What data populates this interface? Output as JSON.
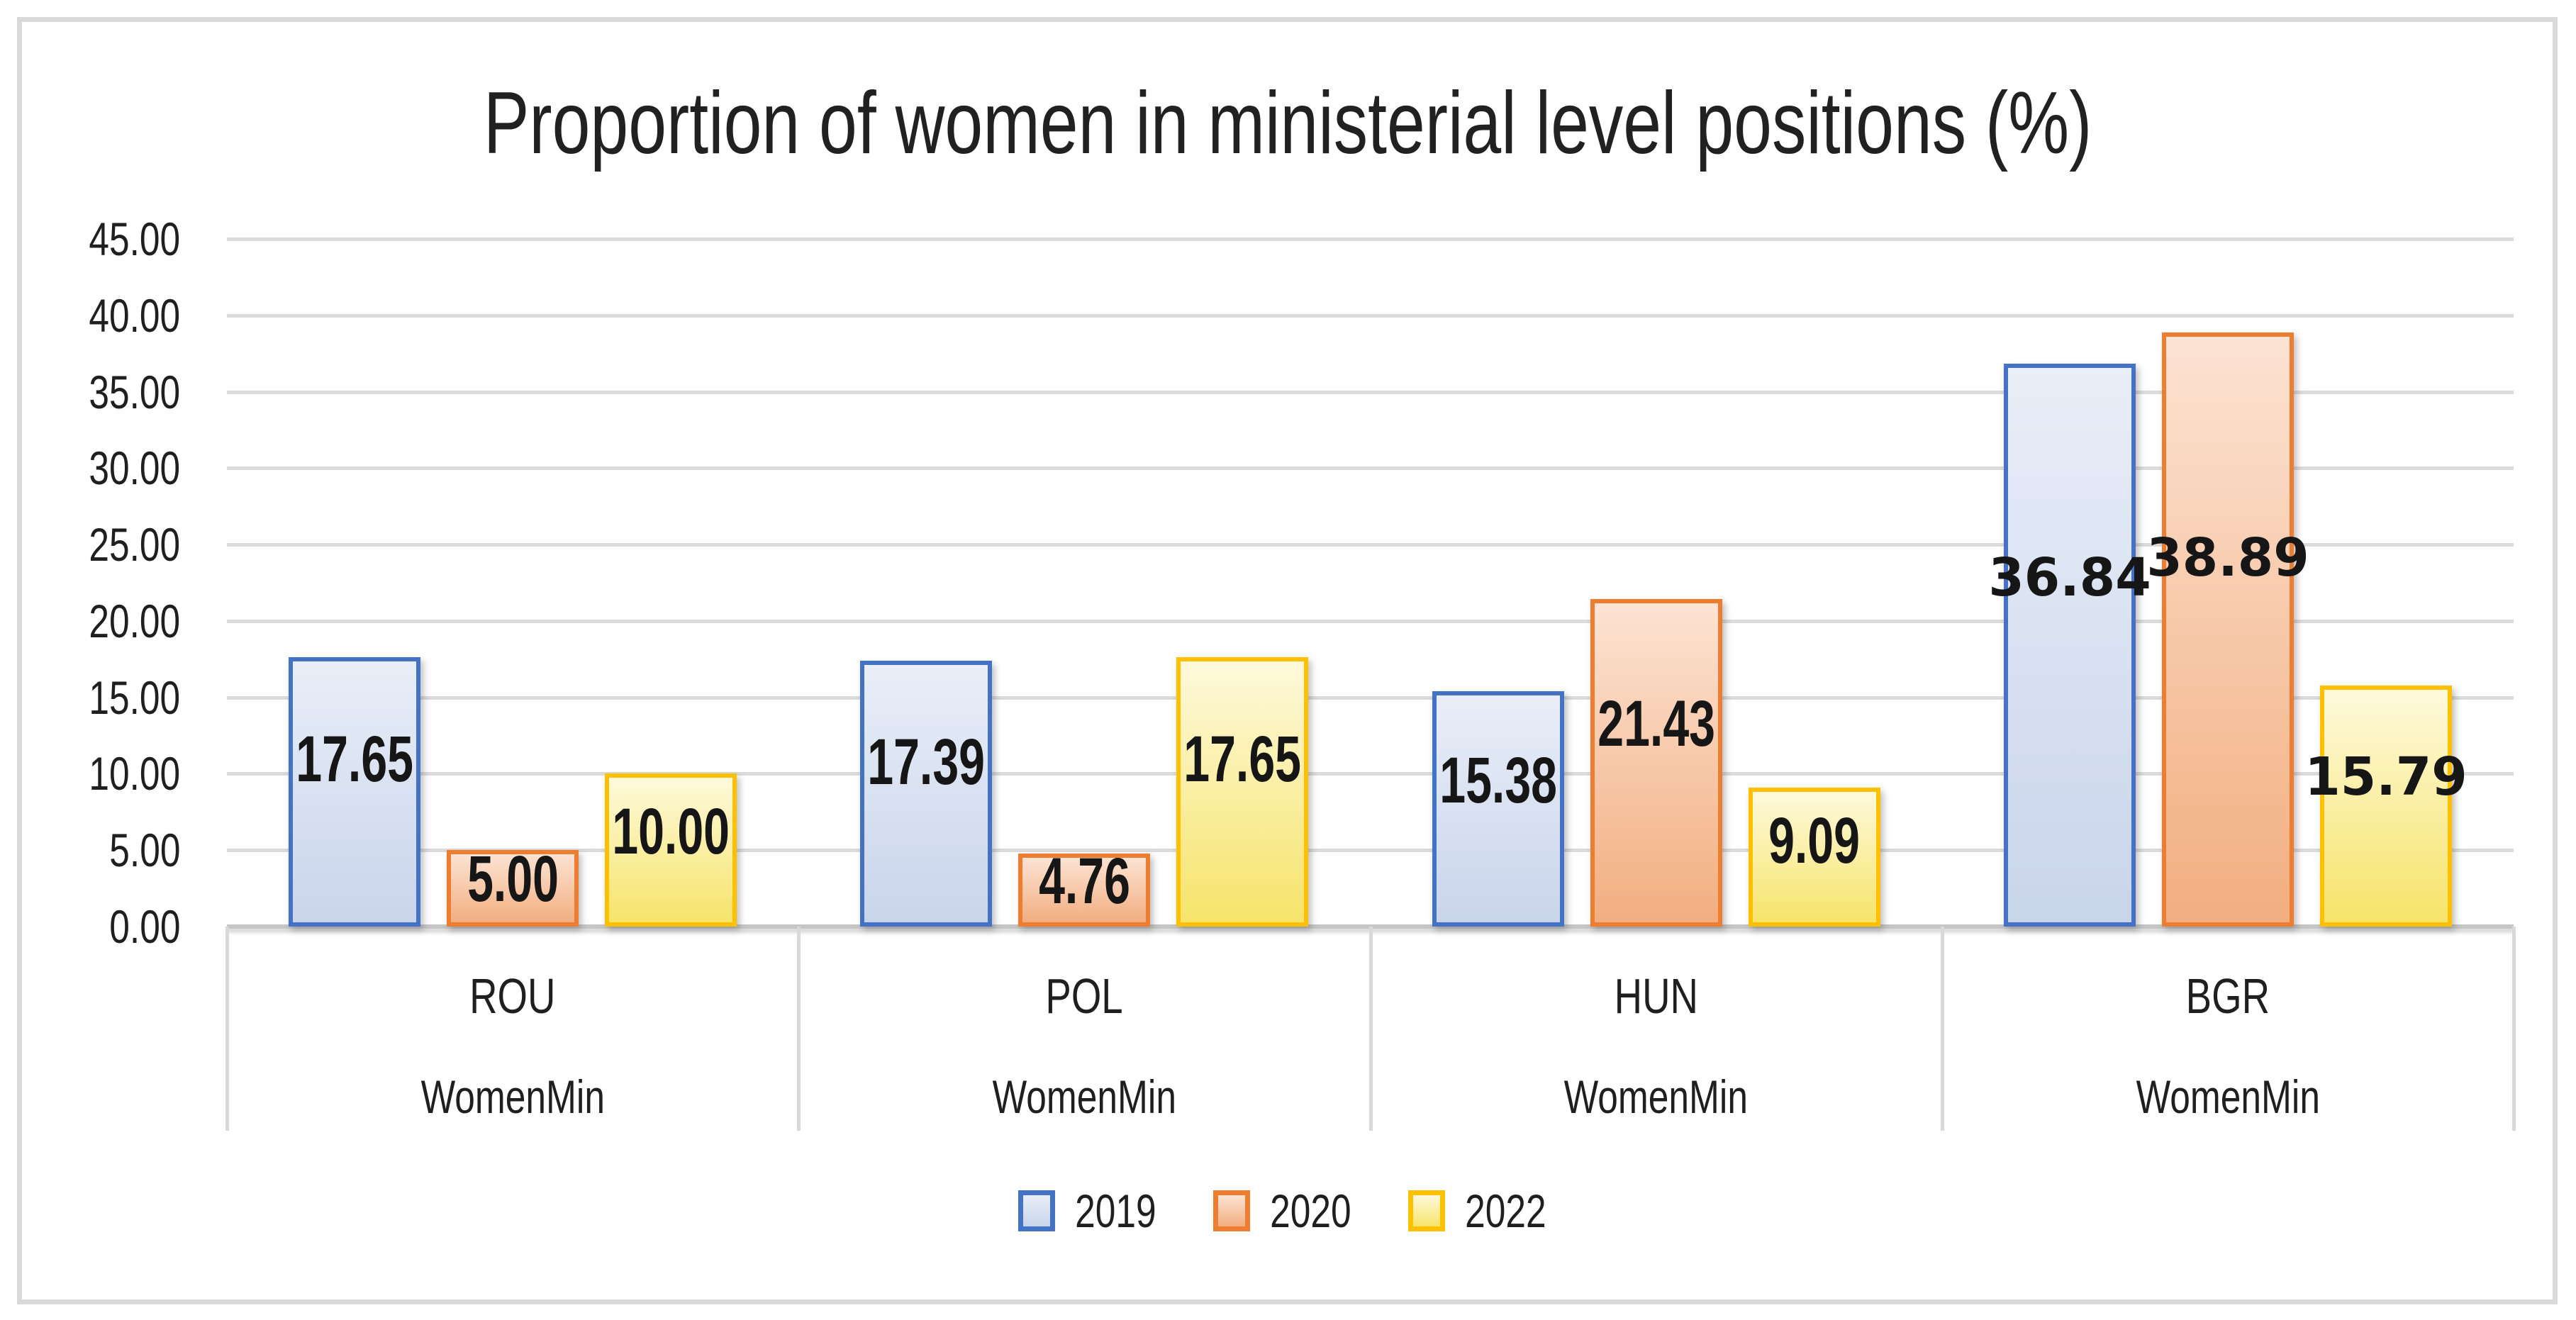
{
  "chart_data": {
    "type": "bar",
    "title": "Proportion of women in ministerial level positions (%)",
    "categories": [
      {
        "code": "ROU",
        "sub": "WomenMin"
      },
      {
        "code": "POL",
        "sub": "WomenMin"
      },
      {
        "code": "HUN",
        "sub": "WomenMin"
      },
      {
        "code": "BGR",
        "sub": "WomenMin"
      }
    ],
    "series": [
      {
        "name": "2019",
        "values": [
          17.65,
          17.39,
          15.38,
          36.84
        ],
        "labels": [
          "17.65",
          "17.39",
          "15.38",
          "36.84"
        ],
        "color": {
          "border": "#4472C4",
          "fill_top": "#E9EEF8",
          "fill_bottom": "#C9D5EB"
        }
      },
      {
        "name": "2020",
        "values": [
          5.0,
          4.76,
          21.43,
          38.89
        ],
        "labels": [
          "5.00",
          "4.76",
          "21.43",
          "38.89"
        ],
        "color": {
          "border": "#ED7D31",
          "fill_top": "#FCE3D3",
          "fill_bottom": "#F2AE80"
        }
      },
      {
        "name": "2022",
        "values": [
          10.0,
          17.65,
          9.09,
          15.79
        ],
        "labels": [
          "10.00",
          "17.65",
          "9.09",
          "15.79"
        ],
        "color": {
          "border": "#FFC000",
          "fill_top": "#FEF9DC",
          "fill_bottom": "#F6E46A"
        }
      }
    ],
    "ylim": [
      0,
      45
    ],
    "ytick_step": 5,
    "yticks": [
      "45.00",
      "40.00",
      "35.00",
      "30.00",
      "25.00",
      "20.00",
      "15.00",
      "10.00",
      "5.00",
      "0.00"
    ],
    "grid": true,
    "legend_position": "bottom",
    "colors": {
      "gridline": "#DBDBDB",
      "axis_line": "#C6C6C6",
      "frame": "#D9D9D9",
      "text": "#1F1F1F"
    }
  }
}
